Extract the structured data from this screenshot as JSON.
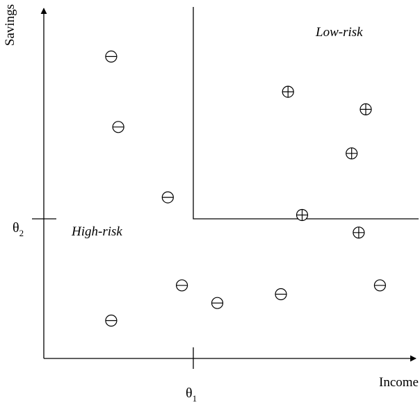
{
  "axes": {
    "x_label": "Income",
    "y_label": "Savings"
  },
  "thresholds": {
    "income": {
      "symbol": "θ",
      "subscript": "1"
    },
    "savings": {
      "symbol": "θ",
      "subscript": "2"
    }
  },
  "regions": {
    "low_risk": "Low-risk",
    "high_risk": "High-risk"
  },
  "points": {
    "positive": [
      {
        "income": 0.48,
        "savings": 0.76
      },
      {
        "income": 0.59,
        "savings": 0.74
      },
      {
        "income": 0.57,
        "savings": 0.69
      },
      {
        "income": 0.68,
        "savings": 0.68
      },
      {
        "income": 0.5,
        "savings": 0.62
      },
      {
        "income": 0.58,
        "savings": 0.6
      }
    ],
    "negative": [
      {
        "income": 0.23,
        "savings": 0.8
      },
      {
        "income": 0.24,
        "savings": 0.72
      },
      {
        "income": 0.31,
        "savings": 0.64
      },
      {
        "income": 0.33,
        "savings": 0.54
      },
      {
        "income": 0.38,
        "savings": 0.52
      },
      {
        "income": 0.47,
        "savings": 0.53
      },
      {
        "income": 0.61,
        "savings": 0.54
      },
      {
        "income": 0.23,
        "savings": 0.5
      }
    ]
  }
}
